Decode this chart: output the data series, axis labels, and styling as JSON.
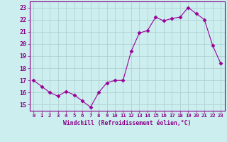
{
  "x": [
    0,
    1,
    2,
    3,
    4,
    5,
    6,
    7,
    8,
    9,
    10,
    11,
    12,
    13,
    14,
    15,
    16,
    17,
    18,
    19,
    20,
    21,
    22,
    23
  ],
  "y": [
    17.0,
    16.5,
    16.0,
    15.7,
    16.1,
    15.8,
    15.3,
    14.8,
    16.0,
    16.8,
    17.0,
    17.0,
    19.4,
    20.9,
    21.1,
    22.2,
    21.9,
    22.1,
    22.2,
    23.0,
    22.5,
    22.0,
    19.9,
    18.4
  ],
  "line_color": "#990099",
  "marker": "D",
  "marker_size": 2.5,
  "bg_color": "#cceeee",
  "grid_color": "#aacccc",
  "ylabel_vals": [
    15,
    16,
    17,
    18,
    19,
    20,
    21,
    22,
    23
  ],
  "xlabel": "Windchill (Refroidissement éolien,°C)",
  "ylim": [
    14.5,
    23.5
  ],
  "xlim": [
    -0.5,
    23.5
  ],
  "tick_color": "#880088",
  "label_color": "#880088",
  "spine_color": "#880088"
}
